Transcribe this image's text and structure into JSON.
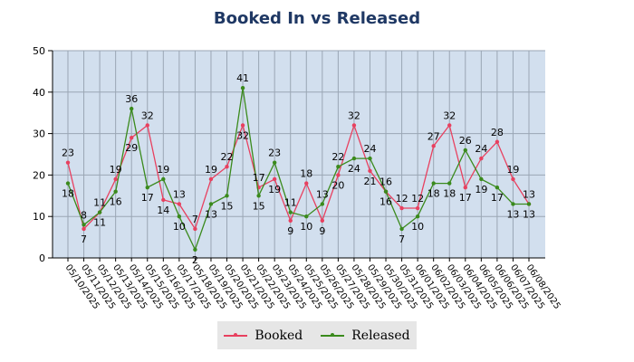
{
  "chart_data": {
    "type": "line",
    "title": "Booked In vs Released",
    "xlabel": "",
    "ylabel": "",
    "ylim": [
      0,
      50
    ],
    "yticks": [
      0,
      10,
      20,
      30,
      40,
      50
    ],
    "grid": true,
    "legend_position": "bottom",
    "categories": [
      "05/10/2025",
      "05/11/2025",
      "05/12/2025",
      "05/13/2025",
      "05/14/2025",
      "05/15/2025",
      "05/16/2025",
      "05/17/2025",
      "05/18/2025",
      "05/19/2025",
      "05/20/2025",
      "05/21/2025",
      "05/22/2025",
      "05/23/2025",
      "05/24/2025",
      "05/25/2025",
      "05/26/2025",
      "05/27/2025",
      "05/28/2025",
      "05/29/2025",
      "05/30/2025",
      "05/31/2025",
      "06/01/2025",
      "06/02/2025",
      "06/03/2025",
      "06/04/2025",
      "06/05/2025",
      "06/06/2025",
      "06/07/2025",
      "06/08/2025"
    ],
    "series": [
      {
        "name": "Booked",
        "color": "#e8405f",
        "values": [
          23,
          7,
          11,
          19,
          29,
          32,
          14,
          13,
          7,
          19,
          22,
          32,
          17,
          19,
          9,
          18,
          9,
          20,
          32,
          21,
          16,
          12,
          12,
          27,
          32,
          17,
          24,
          28,
          19,
          13
        ]
      },
      {
        "name": "Released",
        "color": "#3a8a1c",
        "values": [
          18,
          8,
          11,
          16,
          36,
          17,
          19,
          10,
          2,
          13,
          15,
          41,
          15,
          23,
          11,
          10,
          13,
          22,
          24,
          24,
          16,
          7,
          10,
          18,
          18,
          26,
          19,
          17,
          13,
          13
        ]
      }
    ]
  }
}
